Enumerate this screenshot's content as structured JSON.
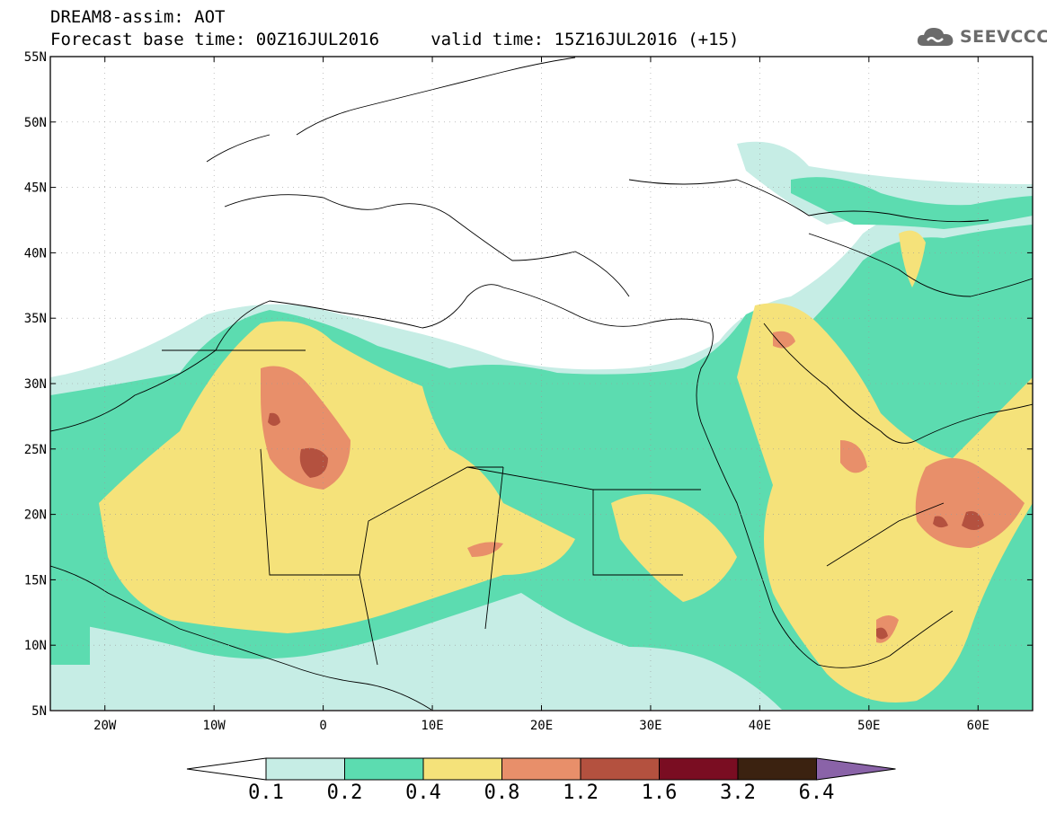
{
  "title": {
    "line1": "DREAM8-assim: AOT",
    "line2": "Forecast base time: 00Z16JUL2016     valid time: 15Z16JUL2016 (+15)"
  },
  "logo": {
    "text": "SEEVCCC",
    "icon": "cloud-icon"
  },
  "map": {
    "lat_ticks": [
      "55N",
      "50N",
      "45N",
      "40N",
      "35N",
      "30N",
      "25N",
      "20N",
      "15N",
      "10N",
      "5N"
    ],
    "lon_ticks": [
      "20W",
      "10W",
      "0",
      "10E",
      "20E",
      "30E",
      "40E",
      "50E",
      "60E"
    ],
    "lon_range": [
      -25,
      65
    ],
    "lat_range": [
      5,
      55
    ]
  },
  "legend": {
    "labels": [
      "0.1",
      "0.2",
      "0.4",
      "0.8",
      "1.2",
      "1.6",
      "3.2",
      "6.4"
    ],
    "colors": [
      "#ffffff",
      "#c6ede5",
      "#5cdcb0",
      "#f5e27a",
      "#e88f6a",
      "#b4513f",
      "#7a0d22",
      "#3b2210",
      "#8a63a8"
    ]
  }
}
